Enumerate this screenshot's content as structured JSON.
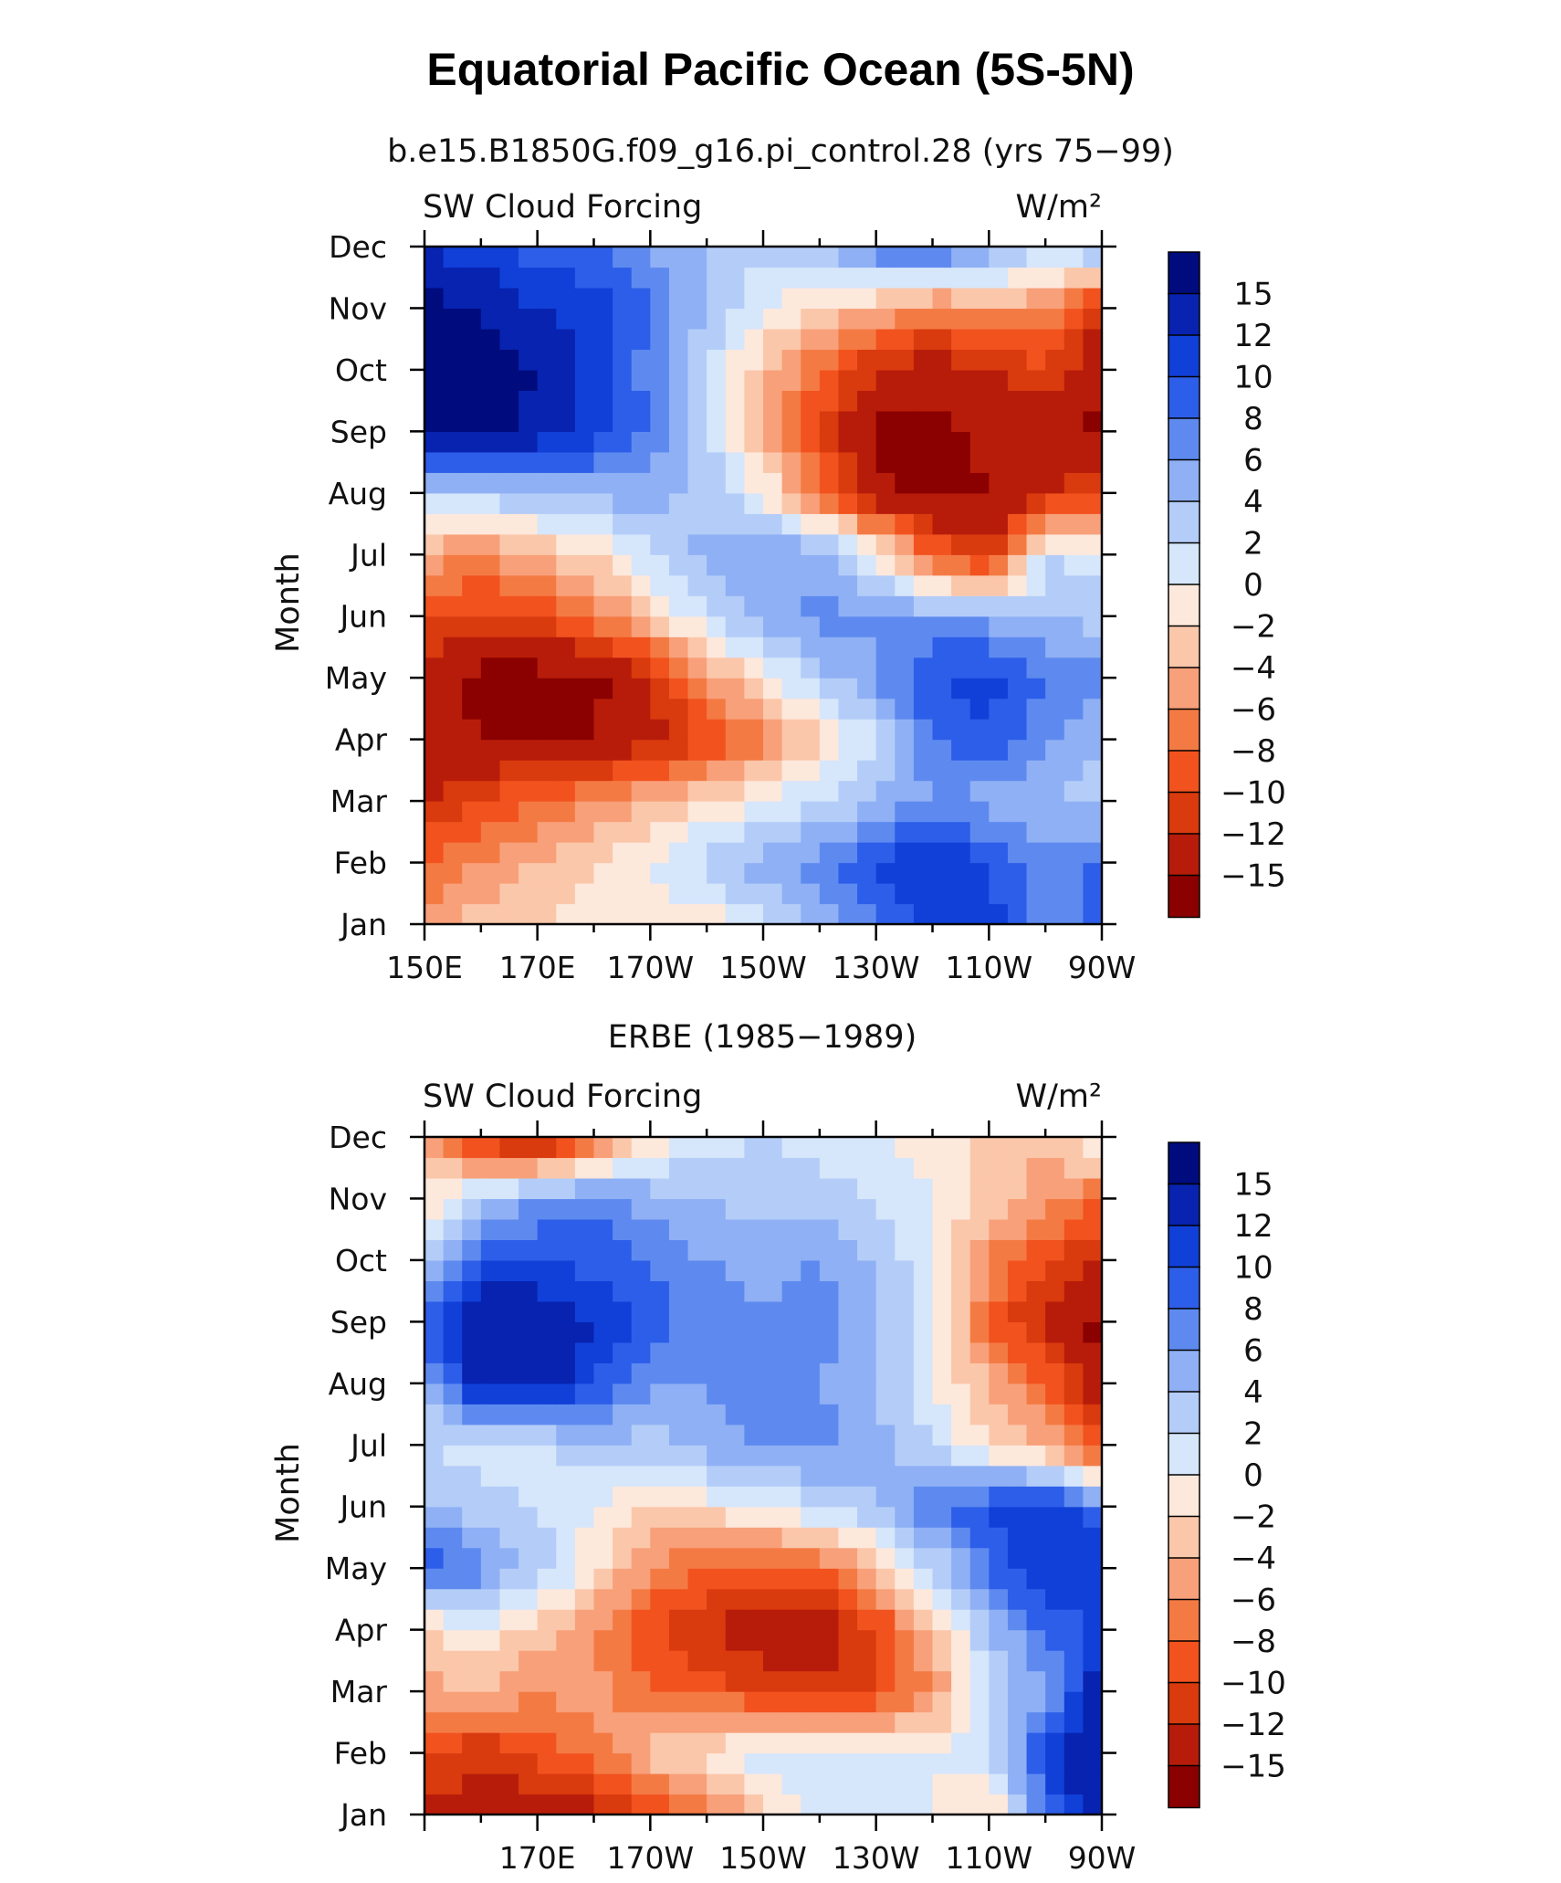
{
  "figure": {
    "title": "Equatorial Pacific Ocean (5S-5N)"
  },
  "chart_data": [
    {
      "type": "heatmap",
      "title": "b.e15.B1850G.f09_g16.pi_control.28 (yrs 75−99)",
      "left_label": "SW Cloud Forcing",
      "units": "W/m²",
      "ylabel": "Month",
      "xlabel": "",
      "x_tick_labels": [
        "150E",
        "170E",
        "170W",
        "150W",
        "130W",
        "110W",
        "90W"
      ],
      "y_tick_labels": [
        "Jan",
        "Feb",
        "Mar",
        "Apr",
        "May",
        "Jun",
        "Jul",
        "Aug",
        "Sep",
        "Oct",
        "Nov",
        "Dec"
      ],
      "colorbar_labels": [
        "15",
        "12",
        "10",
        "8",
        "6",
        "4",
        "2",
        "0",
        "−2",
        "−4",
        "−6",
        "−8",
        "−10",
        "−12",
        "−15"
      ],
      "colorbar_colors": [
        "#8b0000",
        "#b71c0a",
        "#d93a0e",
        "#f2521e",
        "#f47a44",
        "#f8a07a",
        "#fbc7aa",
        "#fde8dc",
        "#d6e6fb",
        "#b4cdf8",
        "#8fb0f4",
        "#5e8af0",
        "#2d5ee9",
        "#1140d8",
        "#0723b0",
        "#000c7d"
      ],
      "thresholds": [
        -15,
        -12,
        -10,
        -8,
        -6,
        -4,
        -2,
        0,
        2,
        4,
        6,
        8,
        10,
        12,
        15
      ],
      "grid_lon": [
        "150E",
        "160E",
        "170E",
        "180",
        "170W",
        "160W",
        "150W",
        "140W",
        "130W",
        "120W",
        "110W",
        "100W",
        "90W"
      ],
      "grid_month": [
        "Jan",
        "Feb",
        "Mar",
        "Apr",
        "May",
        "Jun",
        "Jul",
        "Aug",
        "Sep",
        "Oct",
        "Nov",
        "Dec"
      ],
      "z": [
        [
          -5,
          -3,
          -2,
          -1,
          -1,
          -1,
          1,
          4,
          8,
          11,
          11,
          6,
          9
        ],
        [
          -8,
          -6,
          -4,
          -2,
          0,
          3,
          5,
          7,
          10,
          12,
          10,
          6,
          9
        ],
        [
          -12,
          -10,
          -8,
          -6,
          -4,
          -2,
          0,
          2,
          4,
          6,
          5,
          4,
          3
        ],
        [
          -14,
          -15,
          -15,
          -15,
          -13,
          -10,
          -7,
          -3,
          2,
          8,
          10,
          6,
          4
        ],
        [
          -14,
          -16,
          -16,
          -16,
          -12,
          -6,
          -1,
          3,
          6,
          10,
          11,
          8,
          7
        ],
        [
          -9,
          -11,
          -10,
          -7,
          -3,
          2,
          5,
          7,
          6,
          6,
          5,
          4,
          3
        ],
        [
          -5,
          -6,
          -4,
          -2,
          2,
          5,
          6,
          5,
          0,
          -8,
          -12,
          2,
          1
        ],
        [
          2,
          3,
          4,
          5,
          5,
          3,
          0,
          -7,
          -14,
          -16,
          -15,
          -12,
          -10
        ],
        [
          15,
          16,
          14,
          11,
          8,
          3,
          -4,
          -10,
          -16,
          -16,
          -14,
          -14,
          -16
        ],
        [
          16,
          16,
          15,
          11,
          7,
          2,
          -3,
          -8,
          -12,
          -14,
          -12,
          -10,
          -14
        ],
        [
          16,
          15,
          12,
          11,
          8,
          4,
          0,
          -2,
          -4,
          -7,
          -5,
          -6,
          -12
        ],
        [
          12,
          10,
          9,
          8,
          6,
          4,
          3,
          4,
          8,
          10,
          6,
          3,
          5
        ]
      ]
    },
    {
      "type": "heatmap",
      "title": "ERBE (1985−1989)",
      "left_label": "SW Cloud Forcing",
      "units": "W/m²",
      "ylabel": "Month",
      "xlabel": "",
      "x_tick_labels": [
        "170E",
        "170W",
        "150W",
        "130W",
        "110W",
        "90W"
      ],
      "y_tick_labels": [
        "Jan",
        "Feb",
        "Mar",
        "Apr",
        "May",
        "Jun",
        "Jul",
        "Aug",
        "Sep",
        "Oct",
        "Nov",
        "Dec"
      ],
      "colorbar_labels": [
        "15",
        "12",
        "10",
        "8",
        "6",
        "4",
        "2",
        "0",
        "−2",
        "−4",
        "−6",
        "−8",
        "−10",
        "−12",
        "−15"
      ],
      "colorbar_colors": [
        "#8b0000",
        "#b71c0a",
        "#d93a0e",
        "#f2521e",
        "#f47a44",
        "#f8a07a",
        "#fbc7aa",
        "#fde8dc",
        "#d6e6fb",
        "#b4cdf8",
        "#8fb0f4",
        "#5e8af0",
        "#2d5ee9",
        "#1140d8",
        "#0723b0",
        "#000c7d"
      ],
      "thresholds": [
        -15,
        -12,
        -10,
        -8,
        -6,
        -4,
        -2,
        0,
        2,
        4,
        6,
        8,
        10,
        12,
        15
      ],
      "grid_lon": [
        "150E",
        "160E",
        "170E",
        "180",
        "170W",
        "160W",
        "150W",
        "140W",
        "130W",
        "120W",
        "110W",
        "100W",
        "90W"
      ],
      "grid_month": [
        "Jan",
        "Feb",
        "Mar",
        "Apr",
        "May",
        "Jun",
        "Jul",
        "Aug",
        "Sep",
        "Oct",
        "Nov",
        "Dec"
      ],
      "z": [
        [
          -12,
          -14,
          -14,
          -13,
          -10,
          -8,
          -2,
          1,
          2,
          0,
          -3,
          8,
          14
        ],
        [
          -10,
          -12,
          -9,
          -7,
          -3,
          -1,
          1,
          2,
          1,
          0,
          2,
          10,
          16
        ],
        [
          -5,
          -4,
          -6,
          -5,
          -8,
          -9,
          -10,
          -11,
          -10,
          -6,
          2,
          6,
          14
        ],
        [
          -3,
          0,
          -3,
          -6,
          -10,
          -12,
          -14,
          -14,
          -10,
          -4,
          4,
          8,
          10
        ],
        [
          10,
          7,
          3,
          -1,
          -6,
          -8,
          -9,
          -8,
          -4,
          2,
          8,
          12,
          12
        ],
        [
          4,
          3,
          2,
          0,
          -2,
          -1,
          0,
          2,
          4,
          8,
          10,
          12,
          8
        ],
        [
          2,
          1,
          1,
          4,
          3,
          5,
          6,
          7,
          5,
          2,
          -2,
          -4,
          -10
        ],
        [
          4,
          14,
          14,
          10,
          6,
          6,
          7,
          6,
          4,
          0,
          -4,
          -8,
          -14
        ],
        [
          10,
          15,
          14,
          12,
          9,
          7,
          6,
          7,
          4,
          0,
          -8,
          -13,
          -16
        ],
        [
          2,
          10,
          10,
          9,
          8,
          6,
          5,
          6,
          4,
          0,
          -6,
          -10,
          -12
        ],
        [
          -2,
          3,
          6,
          8,
          5,
          4,
          3,
          3,
          2,
          0,
          -3,
          -5,
          -8
        ],
        [
          -5,
          -12,
          -14,
          -10,
          -2,
          1,
          2,
          1,
          0,
          -1,
          -3,
          -4,
          1
        ]
      ]
    }
  ]
}
